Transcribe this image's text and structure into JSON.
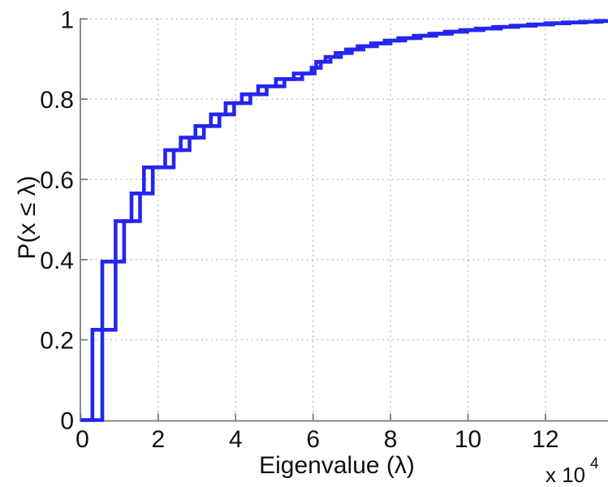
{
  "figure": {
    "background": "#ffffff"
  },
  "chart_data": {
    "type": "line",
    "subtype": "empirical-cdf-step",
    "title": "",
    "xlabel": "Eigenvalue (λ)",
    "ylabel": "P(x ≤ λ)",
    "x_multiplier": "x 10",
    "x_multiplier_exponent": "4",
    "xlim": [
      0,
      13.62
    ],
    "ylim": [
      0,
      1
    ],
    "x_units": "×10^4",
    "grid": true,
    "legend": "none",
    "x_ticks": [
      {
        "value": 0,
        "label": "0"
      },
      {
        "value": 2,
        "label": "2"
      },
      {
        "value": 4,
        "label": "4"
      },
      {
        "value": 6,
        "label": "6"
      },
      {
        "value": 8,
        "label": "8"
      },
      {
        "value": 10,
        "label": "10"
      },
      {
        "value": 12,
        "label": "12"
      }
    ],
    "y_ticks": [
      {
        "value": 0,
        "label": "0"
      },
      {
        "value": 0.2,
        "label": "0.2"
      },
      {
        "value": 0.4,
        "label": "0.4"
      },
      {
        "value": 0.6,
        "label": "0.6"
      },
      {
        "value": 0.8,
        "label": "0.8"
      },
      {
        "value": 1,
        "label": "1"
      }
    ],
    "grid_x_values": [
      2,
      4,
      6,
      8,
      10,
      12
    ],
    "grid_y_values": [
      0.2,
      0.4,
      0.6,
      0.8,
      1.0
    ],
    "colors": {
      "line": "#2525f0",
      "axis": "#787878",
      "grid": "#aaaaaa",
      "text": "#111111"
    },
    "line_width": 4.6,
    "series": [
      {
        "name": "ecdf-curve-1",
        "start": [
          0,
          0
        ],
        "steps": [
          [
            0.3,
            0.225
          ],
          [
            0.9,
            0.496
          ],
          [
            1.31,
            0.565
          ],
          [
            1.63,
            0.63
          ],
          [
            2.18,
            0.673
          ],
          [
            2.58,
            0.704
          ],
          [
            2.96,
            0.733
          ],
          [
            3.36,
            0.762
          ],
          [
            3.74,
            0.79
          ],
          [
            4.16,
            0.812
          ],
          [
            4.58,
            0.832
          ],
          [
            5.04,
            0.85
          ],
          [
            5.5,
            0.864
          ],
          [
            5.96,
            0.878
          ],
          [
            6.08,
            0.893
          ],
          [
            6.32,
            0.905
          ],
          [
            6.58,
            0.915
          ],
          [
            6.85,
            0.924
          ],
          [
            7.15,
            0.932
          ],
          [
            7.5,
            0.939
          ],
          [
            7.85,
            0.946
          ],
          [
            8.2,
            0.952
          ],
          [
            8.6,
            0.958
          ],
          [
            9.0,
            0.963
          ],
          [
            9.4,
            0.968
          ],
          [
            9.8,
            0.972
          ],
          [
            10.2,
            0.976
          ],
          [
            10.65,
            0.98
          ],
          [
            11.1,
            0.983
          ],
          [
            11.55,
            0.986
          ],
          [
            12.0,
            0.989
          ],
          [
            12.45,
            0.991
          ],
          [
            12.9,
            0.993
          ],
          [
            13.3,
            0.995
          ]
        ],
        "end_x": 13.62
      },
      {
        "name": "ecdf-curve-2",
        "start": [
          0,
          0
        ],
        "steps": [
          [
            0.555,
            0.395
          ],
          [
            1.12,
            0.496
          ],
          [
            1.53,
            0.565
          ],
          [
            1.86,
            0.63
          ],
          [
            2.4,
            0.673
          ],
          [
            2.81,
            0.704
          ],
          [
            3.18,
            0.733
          ],
          [
            3.58,
            0.762
          ],
          [
            3.96,
            0.79
          ],
          [
            4.38,
            0.812
          ],
          [
            4.8,
            0.832
          ],
          [
            5.26,
            0.85
          ],
          [
            5.72,
            0.864
          ],
          [
            6.04,
            0.878
          ],
          [
            6.2,
            0.893
          ],
          [
            6.45,
            0.905
          ],
          [
            6.72,
            0.915
          ],
          [
            7.0,
            0.924
          ],
          [
            7.3,
            0.932
          ],
          [
            7.65,
            0.939
          ],
          [
            8.0,
            0.946
          ],
          [
            8.38,
            0.952
          ],
          [
            8.78,
            0.958
          ],
          [
            9.18,
            0.963
          ],
          [
            9.58,
            0.968
          ],
          [
            9.98,
            0.972
          ],
          [
            10.4,
            0.976
          ],
          [
            10.85,
            0.98
          ],
          [
            11.3,
            0.983
          ],
          [
            11.75,
            0.986
          ],
          [
            12.2,
            0.989
          ],
          [
            12.62,
            0.991
          ],
          [
            13.05,
            0.993
          ],
          [
            13.45,
            0.995
          ]
        ],
        "end_x": 13.62
      }
    ]
  }
}
